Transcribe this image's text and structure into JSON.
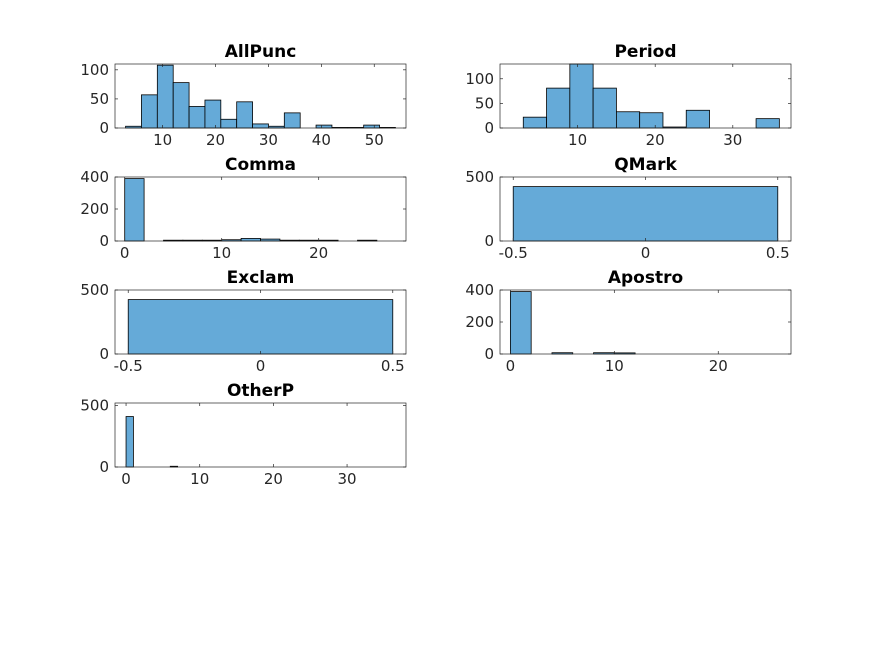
{
  "colors": {
    "bar_fill": "#65aad8",
    "bar_edge": "#000000",
    "axis": "#262626",
    "background": "#ffffff"
  },
  "chart_data": [
    {
      "type": "bar",
      "title": "AllPunc",
      "xlim": [
        1,
        56
      ],
      "ylim": [
        0,
        110
      ],
      "xticks": [
        10,
        20,
        30,
        40,
        50
      ],
      "yticks": [
        0,
        50,
        100
      ],
      "bin_edges": [
        3,
        6,
        9,
        12,
        15,
        18,
        21,
        24,
        27,
        30,
        33,
        36,
        39,
        42,
        45,
        48,
        51,
        54
      ],
      "values": [
        3,
        57,
        108,
        78,
        37,
        48,
        15,
        45,
        7,
        3,
        26,
        0,
        5,
        1,
        1,
        5,
        1
      ]
    },
    {
      "type": "bar",
      "title": "Period",
      "xlim": [
        0,
        37.5
      ],
      "ylim": [
        0,
        130
      ],
      "xticks": [
        10,
        20,
        30
      ],
      "yticks": [
        0,
        50,
        100
      ],
      "bin_edges": [
        3,
        6,
        9,
        12,
        15,
        18,
        21,
        24,
        27,
        30,
        33,
        36
      ],
      "values": [
        22,
        81,
        130,
        81,
        33,
        31,
        2,
        36,
        0,
        0,
        19
      ]
    },
    {
      "type": "bar",
      "title": "Comma",
      "xlim": [
        -1,
        29
      ],
      "ylim": [
        0,
        400
      ],
      "xticks": [
        0,
        10,
        20
      ],
      "yticks": [
        0,
        200,
        400
      ],
      "bin_edges": [
        0,
        2,
        4,
        6,
        8,
        10,
        12,
        14,
        16,
        18,
        20,
        22,
        24,
        26,
        28
      ],
      "values": [
        390,
        0,
        5,
        5,
        5,
        8,
        16,
        12,
        5,
        5,
        5,
        0,
        5,
        0,
        5
      ]
    },
    {
      "type": "bar",
      "title": "QMark",
      "xlim": [
        -0.55,
        0.55
      ],
      "ylim": [
        0,
        500
      ],
      "xticks": [
        -0.5,
        0,
        0.5
      ],
      "yticks": [
        0,
        500
      ],
      "bin_edges": [
        -0.5,
        0.5
      ],
      "values": [
        425
      ]
    },
    {
      "type": "bar",
      "title": "Exclam",
      "xlim": [
        -0.55,
        0.55
      ],
      "ylim": [
        0,
        500
      ],
      "xticks": [
        -0.5,
        0,
        0.5
      ],
      "yticks": [
        0,
        500
      ],
      "bin_edges": [
        -0.5,
        0.5
      ],
      "values": [
        425
      ]
    },
    {
      "type": "bar",
      "title": "Apostro",
      "xlim": [
        -1,
        27
      ],
      "ylim": [
        0,
        400
      ],
      "xticks": [
        0,
        10,
        20
      ],
      "yticks": [
        0,
        200,
        400
      ],
      "bin_edges": [
        0,
        2,
        4,
        6,
        8,
        10,
        12,
        14,
        16,
        18,
        20,
        22,
        24,
        26
      ],
      "values": [
        390,
        0,
        8,
        0,
        8,
        7,
        0,
        0,
        0,
        0,
        0,
        0,
        0
      ]
    },
    {
      "type": "bar",
      "title": "OtherP",
      "xlim": [
        -1.5,
        38
      ],
      "ylim": [
        0,
        520
      ],
      "xticks": [
        0,
        10,
        20,
        30
      ],
      "yticks": [
        0,
        500
      ],
      "bin_edges": [
        0,
        1,
        2,
        3,
        4,
        5,
        6,
        7,
        8,
        9,
        10,
        11,
        12,
        13,
        14,
        15,
        16,
        17,
        18,
        19,
        20,
        21,
        22,
        23,
        24,
        25,
        26,
        27,
        28,
        29,
        30,
        31,
        32,
        33,
        34,
        35,
        36,
        37
      ],
      "values": [
        410,
        0,
        0,
        0,
        0,
        0,
        6,
        0,
        0,
        0,
        0,
        0,
        0,
        0,
        0,
        0,
        0,
        0,
        0,
        0,
        0,
        0,
        0,
        0,
        0,
        0,
        0,
        0,
        0,
        0,
        0,
        0,
        0,
        0,
        0,
        0,
        0
      ]
    }
  ]
}
